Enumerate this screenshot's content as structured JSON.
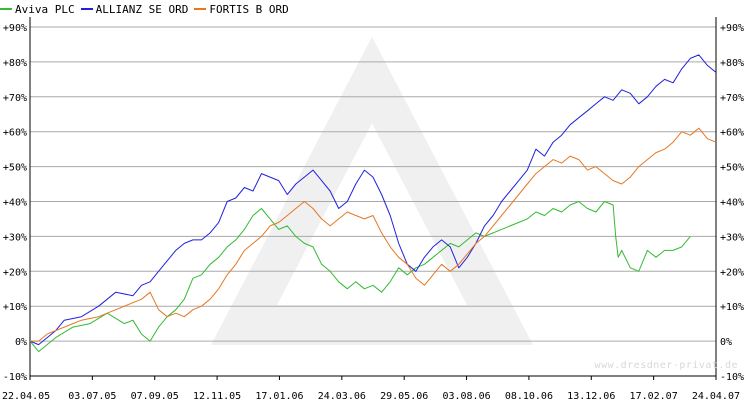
{
  "watermark": "www.dresdner-privat.de",
  "chart_data": {
    "type": "line",
    "title": "",
    "xlabel": "",
    "ylabel": "",
    "ylim": [
      -10,
      90
    ],
    "grid": true,
    "legend_position": "top-left",
    "x_ticks": [
      "22.04.05",
      "03.07.05",
      "07.09.05",
      "12.11.05",
      "17.01.06",
      "24.03.06",
      "29.05.06",
      "03.08.06",
      "08.10.06",
      "13.12.06",
      "17.02.07",
      "24.04.07"
    ],
    "y_ticks": [
      -10,
      0,
      10,
      20,
      30,
      40,
      50,
      60,
      70,
      80,
      90
    ],
    "y_tick_labels": [
      "-10%",
      "0%",
      "+10%",
      "+20%",
      "+30%",
      "+40%",
      "+50%",
      "+60%",
      "+70%",
      "+80%",
      "+90%"
    ],
    "series": [
      {
        "name": "Aviva PLC",
        "color": "#33bb33",
        "points": [
          [
            0,
            0
          ],
          [
            1,
            -3
          ],
          [
            3,
            1
          ],
          [
            5,
            4
          ],
          [
            7,
            5
          ],
          [
            9,
            8
          ],
          [
            11,
            5
          ],
          [
            12,
            6
          ],
          [
            13,
            2
          ],
          [
            14,
            0
          ],
          [
            15,
            4
          ],
          [
            16,
            7
          ],
          [
            17,
            9
          ],
          [
            18,
            12
          ],
          [
            19,
            18
          ],
          [
            20,
            19
          ],
          [
            21,
            22
          ],
          [
            22,
            24
          ],
          [
            23,
            27
          ],
          [
            24,
            29
          ],
          [
            25,
            32
          ],
          [
            26,
            36
          ],
          [
            27,
            38
          ],
          [
            28,
            35
          ],
          [
            29,
            32
          ],
          [
            30,
            33
          ],
          [
            31,
            30
          ],
          [
            32,
            28
          ],
          [
            33,
            27
          ],
          [
            34,
            22
          ],
          [
            35,
            20
          ],
          [
            36,
            17
          ],
          [
            37,
            15
          ],
          [
            38,
            17
          ],
          [
            39,
            15
          ],
          [
            40,
            16
          ],
          [
            41,
            14
          ],
          [
            42,
            17
          ],
          [
            43,
            21
          ],
          [
            44,
            19
          ],
          [
            45,
            21
          ],
          [
            46,
            22
          ],
          [
            47,
            24
          ],
          [
            48,
            26
          ],
          [
            49,
            28
          ],
          [
            50,
            27
          ],
          [
            51,
            29
          ],
          [
            52,
            31
          ],
          [
            53,
            30
          ],
          [
            54,
            31
          ],
          [
            55,
            32
          ],
          [
            56,
            33
          ],
          [
            57,
            34
          ],
          [
            58,
            35
          ],
          [
            59,
            37
          ],
          [
            60,
            36
          ],
          [
            61,
            38
          ],
          [
            62,
            37
          ],
          [
            63,
            39
          ],
          [
            64,
            40
          ],
          [
            65,
            38
          ],
          [
            66,
            37
          ],
          [
            67,
            40
          ],
          [
            68,
            39
          ],
          [
            68.3,
            30
          ],
          [
            68.6,
            24
          ],
          [
            69,
            26
          ],
          [
            70,
            21
          ],
          [
            71,
            20
          ],
          [
            72,
            26
          ],
          [
            73,
            24
          ],
          [
            74,
            26
          ],
          [
            75,
            26
          ],
          [
            76,
            27
          ],
          [
            77,
            30
          ]
        ]
      },
      {
        "name": "ALLIANZ SE ORD",
        "color": "#2222dd",
        "points": [
          [
            0,
            0
          ],
          [
            1,
            -1
          ],
          [
            2,
            1
          ],
          [
            3,
            3
          ],
          [
            4,
            6
          ],
          [
            6,
            7
          ],
          [
            8,
            10
          ],
          [
            10,
            14
          ],
          [
            12,
            13
          ],
          [
            13,
            16
          ],
          [
            14,
            17
          ],
          [
            15,
            20
          ],
          [
            16,
            23
          ],
          [
            17,
            26
          ],
          [
            18,
            28
          ],
          [
            19,
            29
          ],
          [
            20,
            29
          ],
          [
            21,
            31
          ],
          [
            22,
            34
          ],
          [
            23,
            40
          ],
          [
            24,
            41
          ],
          [
            25,
            44
          ],
          [
            26,
            43
          ],
          [
            27,
            48
          ],
          [
            28,
            47
          ],
          [
            29,
            46
          ],
          [
            30,
            42
          ],
          [
            31,
            45
          ],
          [
            32,
            47
          ],
          [
            33,
            49
          ],
          [
            34,
            46
          ],
          [
            35,
            43
          ],
          [
            36,
            38
          ],
          [
            37,
            40
          ],
          [
            38,
            45
          ],
          [
            39,
            49
          ],
          [
            40,
            47
          ],
          [
            41,
            42
          ],
          [
            42,
            36
          ],
          [
            43,
            28
          ],
          [
            44,
            22
          ],
          [
            45,
            20
          ],
          [
            46,
            24
          ],
          [
            47,
            27
          ],
          [
            48,
            29
          ],
          [
            49,
            27
          ],
          [
            50,
            21
          ],
          [
            51,
            24
          ],
          [
            52,
            28
          ],
          [
            53,
            33
          ],
          [
            54,
            36
          ],
          [
            55,
            40
          ],
          [
            56,
            43
          ],
          [
            57,
            46
          ],
          [
            58,
            49
          ],
          [
            59,
            55
          ],
          [
            60,
            53
          ],
          [
            61,
            57
          ],
          [
            62,
            59
          ],
          [
            63,
            62
          ],
          [
            64,
            64
          ],
          [
            65,
            66
          ],
          [
            66,
            68
          ],
          [
            67,
            70
          ],
          [
            68,
            69
          ],
          [
            69,
            72
          ],
          [
            70,
            71
          ],
          [
            71,
            68
          ],
          [
            72,
            70
          ],
          [
            73,
            73
          ],
          [
            74,
            75
          ],
          [
            75,
            74
          ],
          [
            76,
            78
          ],
          [
            77,
            81
          ],
          [
            78,
            82
          ],
          [
            79,
            79
          ],
          [
            80,
            77
          ]
        ]
      },
      {
        "name": "FORTIS B ORD",
        "color": "#e87722",
        "points": [
          [
            0,
            0
          ],
          [
            1,
            0
          ],
          [
            2,
            2
          ],
          [
            3,
            3
          ],
          [
            4,
            4
          ],
          [
            6,
            6
          ],
          [
            8,
            7
          ],
          [
            10,
            9
          ],
          [
            12,
            11
          ],
          [
            13,
            12
          ],
          [
            14,
            14
          ],
          [
            15,
            9
          ],
          [
            16,
            7
          ],
          [
            17,
            8
          ],
          [
            18,
            7
          ],
          [
            19,
            9
          ],
          [
            20,
            10
          ],
          [
            21,
            12
          ],
          [
            22,
            15
          ],
          [
            23,
            19
          ],
          [
            24,
            22
          ],
          [
            25,
            26
          ],
          [
            26,
            28
          ],
          [
            27,
            30
          ],
          [
            28,
            33
          ],
          [
            29,
            34
          ],
          [
            30,
            36
          ],
          [
            31,
            38
          ],
          [
            32,
            40
          ],
          [
            33,
            38
          ],
          [
            34,
            35
          ],
          [
            35,
            33
          ],
          [
            36,
            35
          ],
          [
            37,
            37
          ],
          [
            38,
            36
          ],
          [
            39,
            35
          ],
          [
            40,
            36
          ],
          [
            41,
            31
          ],
          [
            42,
            27
          ],
          [
            43,
            24
          ],
          [
            44,
            22
          ],
          [
            45,
            18
          ],
          [
            46,
            16
          ],
          [
            47,
            19
          ],
          [
            48,
            22
          ],
          [
            49,
            20
          ],
          [
            50,
            22
          ],
          [
            51,
            25
          ],
          [
            52,
            28
          ],
          [
            53,
            30
          ],
          [
            54,
            33
          ],
          [
            55,
            36
          ],
          [
            56,
            39
          ],
          [
            57,
            42
          ],
          [
            58,
            45
          ],
          [
            59,
            48
          ],
          [
            60,
            50
          ],
          [
            61,
            52
          ],
          [
            62,
            51
          ],
          [
            63,
            53
          ],
          [
            64,
            52
          ],
          [
            65,
            49
          ],
          [
            66,
            50
          ],
          [
            67,
            48
          ],
          [
            68,
            46
          ],
          [
            69,
            45
          ],
          [
            70,
            47
          ],
          [
            71,
            50
          ],
          [
            72,
            52
          ],
          [
            73,
            54
          ],
          [
            74,
            55
          ],
          [
            75,
            57
          ],
          [
            76,
            60
          ],
          [
            77,
            59
          ],
          [
            78,
            61
          ],
          [
            79,
            58
          ],
          [
            80,
            57
          ]
        ]
      }
    ]
  }
}
